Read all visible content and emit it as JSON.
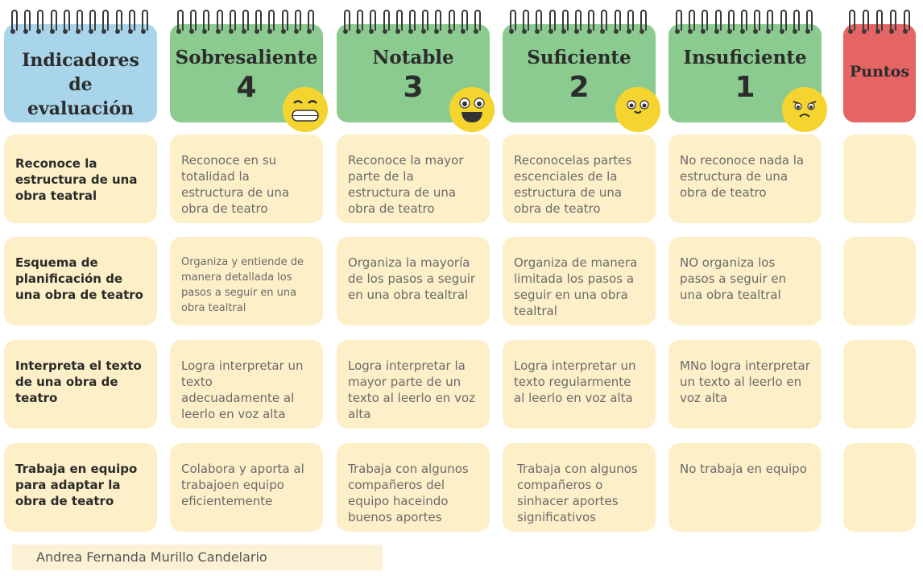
{
  "header": {
    "indicators_title": "Indicadores de evaluación",
    "levels": [
      {
        "title": "Sobresaliente",
        "score": "4",
        "color": "#8bcb8f",
        "emoji": "grinning-teeth-face"
      },
      {
        "title": "Notable",
        "score": "3",
        "color": "#8bcb8f",
        "emoji": "big-smile-face"
      },
      {
        "title": "Suficiente",
        "score": "2",
        "color": "#8bcb8f",
        "emoji": "slight-smile-face"
      },
      {
        "title": "Insuficiente",
        "score": "1",
        "color": "#8bcb8f",
        "emoji": "sad-face"
      }
    ],
    "points_title": "Puntos",
    "indicators_color": "#a9d5ea",
    "points_color": "#e56565"
  },
  "rows": [
    {
      "indicator": "Reconoce la estructura de una obra teatral",
      "cells": [
        "Reconoce en su totalidad la estructura de una obra de teatro",
        "Reconoce la mayor parte de la estructura de una obra de teatro",
        "Reconocelas partes escenciales de la estructura de una obra de teatro",
        "No reconoce nada la estructura de una obra de teatro"
      ],
      "points": ""
    },
    {
      "indicator": "Esquema de planificación de una obra de teatro",
      "cells": [
        "Organiza y entiende de manera detallada los pasos a seguir en una obra tealtral",
        "Organiza la mayoría de los pasos a seguir en una obra tealtral",
        "Organiza de manera limitada los pasos a seguir en una obra tealtral",
        "NO organiza los pasos a seguir en una obra tealtral"
      ],
      "points": ""
    },
    {
      "indicator": "Interpreta el texto de una obra de teatro",
      "cells": [
        "Logra interpretar un texto adecuadamente al leerlo en voz alta",
        "Logra interpretar la mayor parte de un texto al leerlo en voz alta",
        "Logra interpretar un texto regularmente al leerlo en voz alta",
        "MNo logra interpretar un texto al leerlo en voz alta"
      ],
      "points": ""
    },
    {
      "indicator": "Trabaja en equipo para adaptar la obra de teatro",
      "cells": [
        "Colabora y aporta al trabajoen equipo eficientemente",
        "Trabaja con algunos compañeros del equipo haceindo buenos aportes",
        "Trabaja con algunos compañeros o sinhacer aportes significativos",
        "No trabaja en equipo"
      ],
      "points": ""
    }
  ],
  "footer": {
    "author": "Andrea Fernanda Murillo Candelario"
  }
}
